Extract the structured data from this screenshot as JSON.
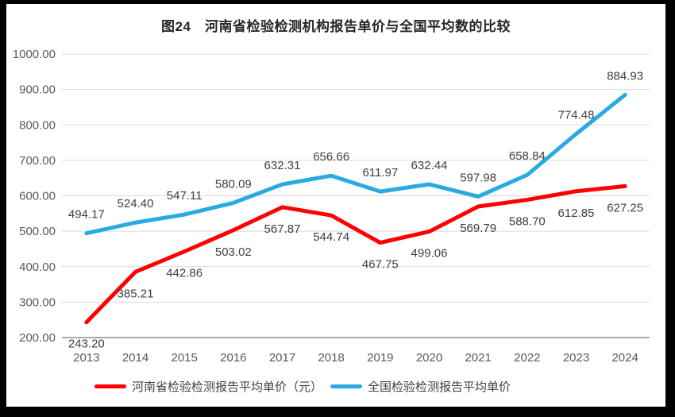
{
  "chart_data": {
    "type": "line",
    "title": "图24　河南省检验检测机构报告单价与全国平均数的比较",
    "categories": [
      "2013",
      "2014",
      "2015",
      "2016",
      "2017",
      "2018",
      "2019",
      "2020",
      "2021",
      "2022",
      "2023",
      "2024"
    ],
    "series": [
      {
        "name": "河南省检验检测报告平均单价（元）",
        "color": "#FF0000",
        "label_position": "below",
        "values": [
          243.2,
          385.21,
          442.86,
          503.02,
          567.87,
          544.74,
          467.75,
          499.06,
          569.79,
          588.7,
          612.85,
          627.25
        ]
      },
      {
        "name": "全国检验检测报告平均单价",
        "color": "#29ABE2",
        "label_position": "above",
        "values": [
          494.17,
          524.4,
          547.11,
          580.09,
          632.31,
          656.66,
          611.97,
          632.44,
          597.98,
          658.84,
          774.48,
          884.93
        ]
      }
    ],
    "ylim": [
      200,
      1000
    ],
    "ytick_step": 100,
    "ytick_decimals": 2,
    "data_label_decimals": 2,
    "grid": true,
    "legend_position": "bottom",
    "colors": {
      "gridline": "#D9D9D9",
      "axis_line": "#ABABAB",
      "axis_text": "#595959",
      "label_text": "#404040",
      "title_text": "#262626",
      "frame_border": "#000000"
    }
  }
}
